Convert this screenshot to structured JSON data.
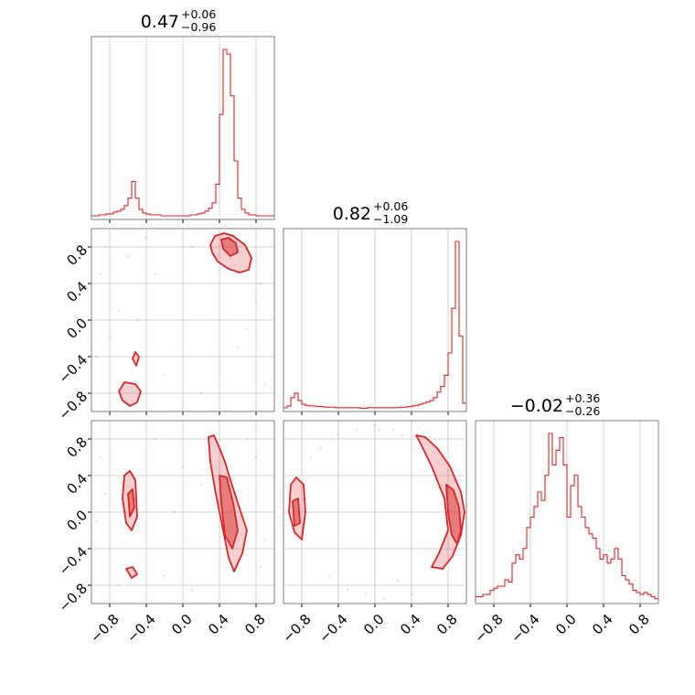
{
  "chart_data": {
    "type": "corner",
    "color": "#d62728",
    "tick_values": [
      -0.8,
      -0.4,
      0.0,
      0.4,
      0.8
    ],
    "tick_labels": [
      "−0.8",
      "−0.4",
      "0.0",
      "0.4",
      "0.8"
    ],
    "range": [
      -1.0,
      1.0
    ],
    "grid": true,
    "titles": [
      {
        "value": "0.47",
        "plus": "+0.06",
        "minus": "−0.96"
      },
      {
        "value": "0.82",
        "plus": "+0.06",
        "minus": "−1.09"
      },
      {
        "value": "−0.02",
        "plus": "+0.36",
        "minus": "−0.26"
      }
    ],
    "histograms": [
      {
        "param_index": 0,
        "bins": [
          -1.0,
          -0.96,
          -0.92,
          -0.88,
          -0.84,
          -0.8,
          -0.76,
          -0.72,
          -0.68,
          -0.64,
          -0.6,
          -0.56,
          -0.52,
          -0.48,
          -0.44,
          -0.4,
          -0.36,
          -0.32,
          -0.28,
          -0.24,
          -0.2,
          -0.16,
          -0.12,
          -0.08,
          -0.04,
          0.0,
          0.04,
          0.08,
          0.12,
          0.16,
          0.2,
          0.24,
          0.28,
          0.32,
          0.36,
          0.4,
          0.44,
          0.48,
          0.52,
          0.56,
          0.6,
          0.64,
          0.68,
          0.72,
          0.76,
          0.8,
          0.84,
          0.88,
          0.92,
          0.96,
          1.0
        ],
        "counts": [
          1,
          1,
          2,
          2,
          3,
          3,
          5,
          6,
          8,
          12,
          20,
          38,
          20,
          8,
          4,
          3,
          2,
          2,
          2,
          1,
          1,
          1,
          1,
          1,
          1,
          1,
          1,
          2,
          2,
          3,
          4,
          6,
          9,
          15,
          35,
          110,
          180,
          175,
          130,
          60,
          20,
          8,
          4,
          2,
          2,
          1,
          1,
          1,
          1,
          1
        ]
      },
      {
        "param_index": 1,
        "bins": [
          -1.0,
          -0.96,
          -0.92,
          -0.88,
          -0.84,
          -0.8,
          -0.76,
          -0.72,
          -0.68,
          -0.64,
          -0.6,
          -0.56,
          -0.52,
          -0.48,
          -0.44,
          -0.4,
          -0.36,
          -0.32,
          -0.28,
          -0.24,
          -0.2,
          -0.16,
          -0.12,
          -0.08,
          -0.04,
          0.0,
          0.04,
          0.08,
          0.12,
          0.16,
          0.2,
          0.24,
          0.28,
          0.32,
          0.36,
          0.4,
          0.44,
          0.48,
          0.52,
          0.56,
          0.6,
          0.64,
          0.68,
          0.72,
          0.76,
          0.8,
          0.84,
          0.88,
          0.92,
          0.96,
          1.0
        ],
        "counts": [
          2,
          5,
          20,
          28,
          15,
          8,
          6,
          5,
          5,
          4,
          4,
          3,
          3,
          3,
          2,
          2,
          2,
          2,
          2,
          2,
          2,
          1,
          1,
          2,
          2,
          2,
          2,
          2,
          2,
          2,
          2,
          2,
          3,
          3,
          4,
          5,
          6,
          8,
          10,
          12,
          15,
          20,
          30,
          40,
          60,
          100,
          180,
          300,
          130,
          10
        ]
      },
      {
        "param_index": 2,
        "bins": [
          -1.0,
          -0.96,
          -0.92,
          -0.88,
          -0.84,
          -0.8,
          -0.76,
          -0.72,
          -0.68,
          -0.64,
          -0.6,
          -0.56,
          -0.52,
          -0.48,
          -0.44,
          -0.4,
          -0.36,
          -0.32,
          -0.28,
          -0.24,
          -0.2,
          -0.16,
          -0.12,
          -0.08,
          -0.04,
          0.0,
          0.04,
          0.08,
          0.12,
          0.16,
          0.2,
          0.24,
          0.28,
          0.32,
          0.36,
          0.4,
          0.44,
          0.48,
          0.52,
          0.56,
          0.6,
          0.64,
          0.68,
          0.72,
          0.76,
          0.8,
          0.84,
          0.88,
          0.92,
          0.96,
          1.0
        ],
        "counts": [
          2,
          2,
          3,
          3,
          5,
          6,
          7,
          7,
          10,
          9,
          18,
          22,
          20,
          25,
          35,
          40,
          45,
          52,
          48,
          60,
          80,
          65,
          72,
          78,
          65,
          40,
          55,
          60,
          45,
          40,
          35,
          32,
          30,
          25,
          20,
          22,
          18,
          20,
          25,
          20,
          12,
          10,
          8,
          5,
          4,
          3,
          4,
          3,
          2,
          1
        ]
      }
    ],
    "contour_panels": [
      {
        "row": 1,
        "col": 0,
        "regions": [
          {
            "x": [
              0.3,
              0.35,
              0.45,
              0.55,
              0.68,
              0.75,
              0.72,
              0.62,
              0.5,
              0.38,
              0.32
            ],
            "y": [
              0.82,
              0.92,
              0.95,
              0.92,
              0.82,
              0.68,
              0.55,
              0.52,
              0.56,
              0.64,
              0.74
            ]
          },
          {
            "x": [
              -0.7,
              -0.64,
              -0.52,
              -0.46,
              -0.5,
              -0.58,
              -0.66
            ],
            "y": [
              -0.78,
              -0.68,
              -0.7,
              -0.78,
              -0.9,
              -0.94,
              -0.88
            ]
          },
          {
            "x": [
              -0.55,
              -0.52,
              -0.48,
              -0.51
            ],
            "y": [
              -0.42,
              -0.35,
              -0.4,
              -0.5
            ]
          }
        ],
        "cores": [
          {
            "x": [
              0.42,
              0.5,
              0.58,
              0.6,
              0.52,
              0.44
            ],
            "y": [
              0.88,
              0.9,
              0.84,
              0.74,
              0.7,
              0.78
            ]
          }
        ]
      },
      {
        "row": 2,
        "col": 0,
        "regions": [
          {
            "x": [
              0.28,
              0.34,
              0.4,
              0.46,
              0.52,
              0.6,
              0.7,
              0.65,
              0.56,
              0.5,
              0.44,
              0.36,
              0.3
            ],
            "y": [
              0.82,
              0.84,
              0.7,
              0.55,
              0.35,
              0.1,
              -0.2,
              -0.45,
              -0.65,
              -0.5,
              -0.2,
              0.2,
              0.55
            ]
          },
          {
            "x": [
              -0.64,
              -0.58,
              -0.52,
              -0.5,
              -0.56,
              -0.62,
              -0.66
            ],
            "y": [
              0.4,
              0.45,
              0.35,
              -0.05,
              -0.2,
              -0.12,
              0.15
            ]
          },
          {
            "x": [
              -0.62,
              -0.55,
              -0.5,
              -0.56
            ],
            "y": [
              -0.62,
              -0.6,
              -0.68,
              -0.72
            ]
          }
        ],
        "cores": [
          {
            "x": [
              0.4,
              0.48,
              0.55,
              0.6,
              0.54,
              0.46,
              0.42
            ],
            "y": [
              0.4,
              0.38,
              0.1,
              -0.2,
              -0.4,
              -0.25,
              0.1
            ]
          },
          {
            "x": [
              -0.6,
              -0.55,
              -0.53,
              -0.58
            ],
            "y": [
              0.2,
              0.25,
              0.05,
              -0.05
            ]
          }
        ]
      },
      {
        "row": 2,
        "col": 1,
        "regions": [
          {
            "x": [
              0.45,
              0.55,
              0.68,
              0.82,
              0.94,
              0.98,
              0.94,
              0.85,
              0.74,
              0.62,
              0.7,
              0.8,
              0.76,
              0.62,
              0.5
            ],
            "y": [
              0.84,
              0.82,
              0.7,
              0.5,
              0.22,
              0.0,
              -0.25,
              -0.48,
              -0.62,
              -0.6,
              -0.45,
              -0.2,
              0.15,
              0.5,
              0.75
            ]
          },
          {
            "x": [
              -0.92,
              -0.86,
              -0.78,
              -0.76,
              -0.8,
              -0.88,
              -0.94
            ],
            "y": [
              0.3,
              0.38,
              0.3,
              0.0,
              -0.3,
              -0.22,
              0.0
            ]
          }
        ],
        "cores": [
          {
            "x": [
              0.78,
              0.86,
              0.92,
              0.94,
              0.9,
              0.84,
              0.8
            ],
            "y": [
              0.3,
              0.24,
              0.05,
              -0.2,
              -0.35,
              -0.25,
              0.0
            ]
          },
          {
            "x": [
              -0.9,
              -0.84,
              -0.82,
              -0.88
            ],
            "y": [
              0.12,
              0.15,
              -0.12,
              -0.15
            ]
          }
        ]
      }
    ],
    "scatter_points": [
      {
        "row": 1,
        "col": 0,
        "x": [
          -0.9,
          -0.8,
          -0.6,
          -0.4,
          -0.2,
          0.1,
          0.2,
          0.6,
          0.8,
          0.9,
          -0.7,
          -0.85,
          -0.3,
          0.4,
          0.7,
          -0.95,
          -0.5,
          0.0,
          0.3,
          0.85
        ],
        "y": [
          0.5,
          -0.2,
          0.7,
          0.9,
          -0.6,
          0.8,
          -0.8,
          -0.3,
          0.2,
          -0.7,
          0.1,
          0.8,
          0.5,
          -0.5,
          -0.1,
          -0.4,
          0.0,
          -0.9,
          0.95,
          0.4
        ]
      },
      {
        "row": 2,
        "col": 0,
        "x": [
          -0.9,
          -0.8,
          -0.3,
          -0.2,
          0.0,
          0.1,
          0.2,
          0.8,
          0.9,
          -0.7,
          -0.85,
          0.7,
          -0.95,
          0.85,
          -0.1
        ],
        "y": [
          0.6,
          -0.4,
          0.8,
          -0.7,
          0.5,
          -0.85,
          0.3,
          0.6,
          -0.3,
          -0.8,
          0.2,
          0.8,
          -0.1,
          -0.6,
          0.0
        ]
      },
      {
        "row": 2,
        "col": 1,
        "x": [
          -0.6,
          -0.4,
          -0.2,
          0.0,
          0.2,
          0.3,
          -0.5,
          -0.3,
          0.1,
          0.4,
          -0.1,
          -0.7,
          0.25,
          -0.45,
          0.05
        ],
        "y": [
          0.7,
          0.85,
          0.9,
          0.95,
          0.9,
          0.85,
          -0.7,
          -0.85,
          -0.95,
          -0.9,
          -0.9,
          0.6,
          -0.75,
          0.8,
          0.9
        ]
      }
    ]
  }
}
